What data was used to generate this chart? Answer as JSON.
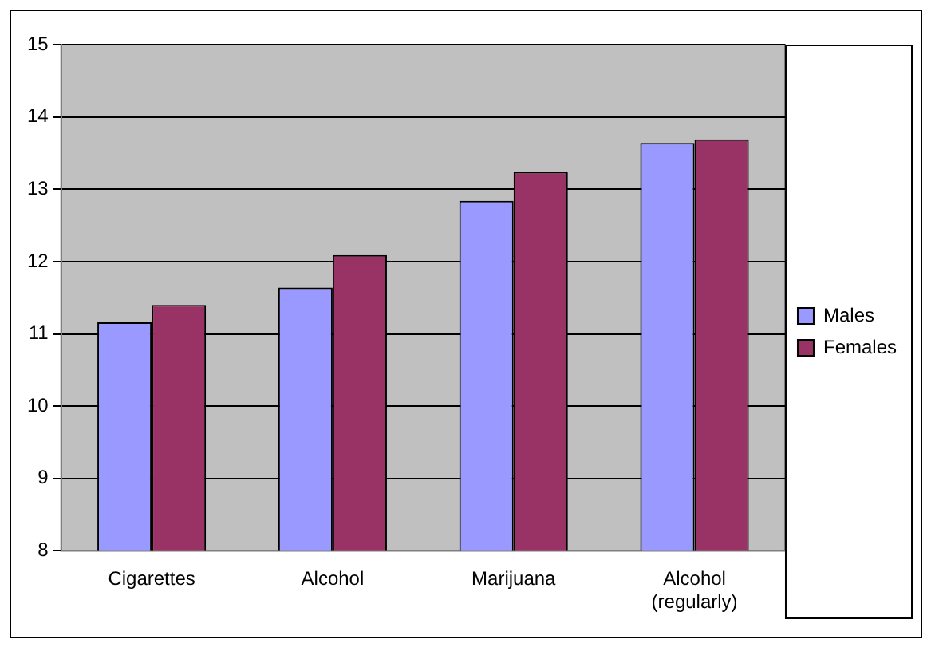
{
  "chart_data": {
    "type": "bar",
    "categories": [
      "Cigarettes",
      "Alcohol",
      "Marijuana",
      "Alcohol\n(regularly)"
    ],
    "series": [
      {
        "name": "Males",
        "color": "#9999ff",
        "values": [
          11.16,
          11.64,
          12.84,
          13.64
        ]
      },
      {
        "name": "Females",
        "color": "#993366",
        "values": [
          11.4,
          12.09,
          13.24,
          13.69
        ]
      }
    ],
    "ylim": [
      8,
      15
    ],
    "yticks": [
      8,
      9,
      10,
      11,
      12,
      13,
      14,
      15
    ],
    "grid": "y",
    "legend": "right"
  }
}
